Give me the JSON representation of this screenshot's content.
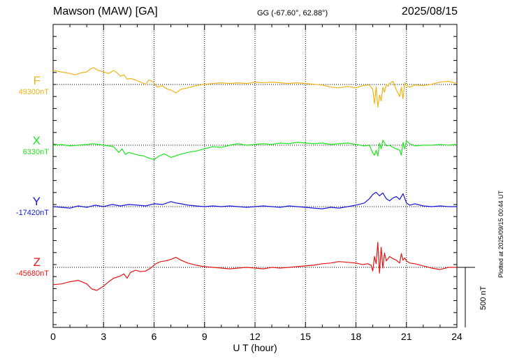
{
  "header": {
    "station": "Mawson (MAW)  [GA]",
    "coords": "GG (-67.60°,  62.88°)",
    "date": "2025/08/15"
  },
  "footer": {
    "plotted": "Plotted at 2025/09/15 00:44 UT",
    "scale_label": "500 nT"
  },
  "chart_data": {
    "type": "line",
    "title": "Mawson (MAW)  [GA]  2025/08/15",
    "xlabel": "U T (hour)",
    "ylabel": "",
    "xlim": [
      0,
      24
    ],
    "x_ticks": [
      "0",
      "3",
      "6",
      "9",
      "12",
      "15",
      "18",
      "21",
      "24"
    ],
    "scale_bar_nT": 500,
    "grid": true,
    "series": [
      {
        "name": "F",
        "baseline_label": "49300nT",
        "baseline": 49300,
        "color": "#f0b418",
        "x": [
          0,
          0.5,
          1,
          1.3,
          1.7,
          2,
          2.2,
          2.4,
          2.7,
          3,
          3.3,
          3.6,
          3.8,
          4,
          4.2,
          4.4,
          4.6,
          4.9,
          5.2,
          5.5,
          5.7,
          5.9,
          6.2,
          6.5,
          6.8,
          7,
          7.3,
          7.6,
          8,
          8.5,
          9,
          9.5,
          10,
          10.5,
          11,
          11.5,
          12,
          12.5,
          13,
          13.5,
          14,
          14.5,
          15,
          15.5,
          16,
          16.5,
          17,
          17.5,
          18,
          18.4,
          18.8,
          19,
          19.1,
          19.2,
          19.3,
          19.4,
          19.5,
          19.6,
          19.7,
          19.8,
          19.9,
          20,
          20.2,
          20.4,
          20.6,
          20.7,
          20.8,
          20.9,
          21,
          21.2,
          21.5,
          22,
          22.5,
          23,
          23.5,
          24
        ],
        "values": [
          49416,
          49404,
          49392,
          49380,
          49398,
          49404,
          49428,
          49440,
          49416,
          49404,
          49392,
          49416,
          49398,
          49368,
          49380,
          49344,
          49350,
          49338,
          49320,
          49302,
          49338,
          49326,
          49278,
          49290,
          49260,
          49254,
          49230,
          49260,
          49272,
          49290,
          49302,
          49308,
          49314,
          49308,
          49314,
          49308,
          49320,
          49314,
          49320,
          49314,
          49308,
          49314,
          49308,
          49302,
          49296,
          49278,
          49272,
          49284,
          49272,
          49290,
          49296,
          49260,
          49140,
          49284,
          49110,
          49212,
          49164,
          49278,
          49236,
          49302,
          49284,
          49308,
          49326,
          49254,
          49200,
          49278,
          49182,
          49314,
          49290,
          49278,
          49296,
          49290,
          49302,
          49320,
          49326,
          49308
        ]
      },
      {
        "name": "X",
        "baseline_label": "6330nT",
        "baseline": 6330,
        "color": "#1ee61e",
        "x": [
          0,
          0.5,
          1,
          1.5,
          2,
          2.4,
          2.7,
          3,
          3.3,
          3.6,
          3.9,
          4.1,
          4.3,
          4.5,
          4.8,
          5.1,
          5.4,
          5.7,
          6,
          6.3,
          6.6,
          7,
          7.5,
          8,
          8.5,
          9,
          9.5,
          10,
          10.5,
          11,
          11.5,
          12,
          12.5,
          13,
          13.5,
          14,
          14.5,
          15,
          15.5,
          16,
          16.5,
          17,
          17.5,
          18,
          18.5,
          18.8,
          19,
          19.1,
          19.2,
          19.3,
          19.4,
          19.5,
          19.6,
          19.8,
          20,
          20.2,
          20.4,
          20.6,
          20.7,
          20.8,
          20.9,
          21,
          21.2,
          21.5,
          22,
          22.5,
          23,
          23.5,
          24
        ],
        "values": [
          6330,
          6336,
          6324,
          6330,
          6336,
          6342,
          6336,
          6330,
          6324,
          6318,
          6270,
          6300,
          6252,
          6270,
          6258,
          6246,
          6240,
          6222,
          6210,
          6240,
          6258,
          6228,
          6252,
          6270,
          6282,
          6300,
          6318,
          6312,
          6330,
          6342,
          6330,
          6336,
          6342,
          6336,
          6348,
          6342,
          6354,
          6348,
          6342,
          6348,
          6336,
          6342,
          6348,
          6336,
          6324,
          6330,
          6264,
          6246,
          6288,
          6240,
          6348,
          6300,
          6372,
          6324,
          6330,
          6312,
          6300,
          6288,
          6246,
          6354,
          6300,
          6366,
          6342,
          6324,
          6330,
          6330,
          6336,
          6330,
          6336
        ]
      },
      {
        "name": "Y",
        "baseline_label": "-17420nT",
        "baseline": -17420,
        "color": "#1414dc",
        "x": [
          0,
          0.5,
          1,
          1.5,
          2,
          2.5,
          3,
          3.5,
          4,
          4.5,
          5,
          5.5,
          6,
          6.5,
          7,
          7.3,
          7.6,
          8,
          8.5,
          9,
          9.5,
          10,
          10.5,
          11,
          11.5,
          12,
          12.5,
          13,
          13.5,
          14,
          14.5,
          15,
          15.5,
          16,
          16.5,
          17,
          17.5,
          18,
          18.5,
          18.8,
          19,
          19.2,
          19.4,
          19.6,
          19.8,
          20,
          20.2,
          20.4,
          20.6,
          20.8,
          21,
          21.2,
          21.5,
          22,
          22.5,
          23,
          23.5,
          24
        ],
        "values": [
          -17420,
          -17426,
          -17432,
          -17414,
          -17426,
          -17408,
          -17420,
          -17402,
          -17414,
          -17402,
          -17408,
          -17414,
          -17396,
          -17402,
          -17378,
          -17390,
          -17396,
          -17408,
          -17414,
          -17420,
          -17414,
          -17420,
          -17414,
          -17420,
          -17426,
          -17420,
          -17414,
          -17420,
          -17426,
          -17414,
          -17420,
          -17426,
          -17432,
          -17438,
          -17426,
          -17432,
          -17420,
          -17408,
          -17390,
          -17354,
          -17318,
          -17300,
          -17330,
          -17306,
          -17354,
          -17372,
          -17348,
          -17336,
          -17360,
          -17312,
          -17390,
          -17408,
          -17396,
          -17414,
          -17420,
          -17414,
          -17420,
          -17420
        ]
      },
      {
        "name": "Z",
        "baseline_label": "-45680nT",
        "baseline": -45680,
        "color": "#e61414",
        "x": [
          0,
          0.5,
          1,
          1.5,
          2,
          2.3,
          2.6,
          3,
          3.3,
          3.6,
          4,
          4.2,
          4.4,
          4.6,
          4.9,
          5.2,
          5.5,
          5.8,
          6.1,
          6.4,
          6.7,
          7,
          7.3,
          7.6,
          8,
          8.5,
          9,
          9.5,
          10,
          10.5,
          11,
          11.5,
          12,
          12.5,
          13,
          13.5,
          14,
          14.5,
          15,
          15.5,
          16,
          16.5,
          17,
          17.5,
          18,
          18.4,
          18.7,
          18.9,
          19,
          19.1,
          19.2,
          19.3,
          19.4,
          19.5,
          19.6,
          19.7,
          19.8,
          20,
          20.2,
          20.4,
          20.6,
          20.7,
          20.8,
          20.9,
          21,
          21.2,
          21.5,
          22,
          22.5,
          23,
          23.5,
          24
        ],
        "values": [
          -45824,
          -45818,
          -45800,
          -45788,
          -45818,
          -45860,
          -45872,
          -45836,
          -45800,
          -45770,
          -45752,
          -45734,
          -45770,
          -45722,
          -45704,
          -45716,
          -45710,
          -45686,
          -45650,
          -45632,
          -45626,
          -45614,
          -45596,
          -45620,
          -45644,
          -45662,
          -45674,
          -45680,
          -45686,
          -45692,
          -45686,
          -45680,
          -45686,
          -45692,
          -45680,
          -45686,
          -45680,
          -45674,
          -45668,
          -45662,
          -45650,
          -45644,
          -45632,
          -45638,
          -45644,
          -45656,
          -45650,
          -45662,
          -45710,
          -45590,
          -45650,
          -45470,
          -45728,
          -45512,
          -45686,
          -45560,
          -45626,
          -45590,
          -45608,
          -45620,
          -45644,
          -45566,
          -45620,
          -45602,
          -45626,
          -45644,
          -45650,
          -45668,
          -45686,
          -45698,
          -45680,
          -45680
        ]
      }
    ]
  }
}
